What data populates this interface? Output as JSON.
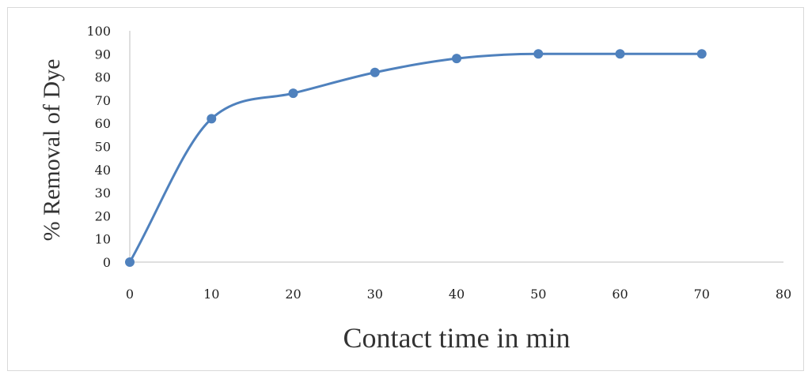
{
  "chart_data": {
    "type": "line",
    "title": "",
    "xlabel": "Contact time in min",
    "ylabel": "% Removal of  Dye",
    "xlim": [
      0,
      80
    ],
    "ylim": [
      0,
      100
    ],
    "x_ticks": [
      0,
      10,
      20,
      30,
      40,
      50,
      60,
      70,
      80
    ],
    "y_ticks": [
      0,
      10,
      20,
      30,
      40,
      50,
      60,
      70,
      80,
      90,
      100
    ],
    "grid": false,
    "legend": "none",
    "smooth": true,
    "series": [
      {
        "color": "#4f81bd",
        "x": [
          0,
          10,
          20,
          30,
          40,
          50,
          60,
          70
        ],
        "y": [
          0,
          62,
          73,
          82,
          88,
          90,
          90,
          90
        ]
      }
    ]
  }
}
